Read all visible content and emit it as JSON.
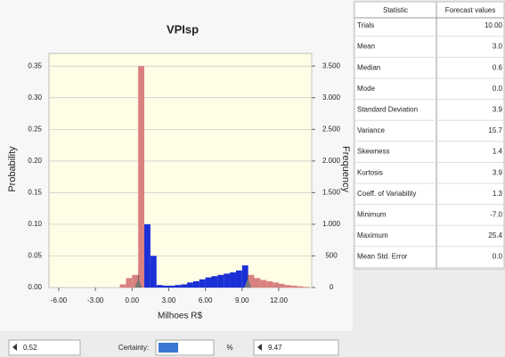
{
  "chart_data": {
    "type": "histogram",
    "title": "VPIsp",
    "xlabel": "Milhoes R$",
    "ylabel": "Probability",
    "y2label": "Frequency",
    "bins": [
      -1.0,
      -0.5,
      0.0,
      0.5,
      1.0,
      1.5,
      2.0,
      2.5,
      3.0,
      3.5,
      4.0,
      4.5,
      5.0,
      5.5,
      6.0,
      6.5,
      7.0,
      7.5,
      8.0,
      8.5,
      9.0,
      9.5,
      10.0,
      10.5,
      11.0,
      11.5,
      12.0,
      12.5,
      13.0,
      13.5,
      14.0,
      14.5
    ],
    "values": [
      0.005,
      0.015,
      0.02,
      0.35,
      0.1,
      0.05,
      0.004,
      0.003,
      0.003,
      0.004,
      0.005,
      0.008,
      0.01,
      0.013,
      0.016,
      0.018,
      0.02,
      0.022,
      0.024,
      0.027,
      0.035,
      0.02,
      0.015,
      0.012,
      0.01,
      0.008,
      0.006,
      0.004,
      0.003,
      0.002,
      0.001
    ],
    "color": "#1a2fd6",
    "outside_color": "#d98080",
    "xlim": [
      -6.8,
      14.7
    ],
    "ylim": [
      0,
      0.37
    ],
    "y2lim": [
      0,
      3700
    ],
    "xticks": [
      {
        "value": -6,
        "label": "-6.00"
      },
      {
        "value": -3,
        "label": "-3.00"
      },
      {
        "value": 0,
        "label": "0.00"
      },
      {
        "value": 3,
        "label": "3.00"
      },
      {
        "value": 6,
        "label": "6.00"
      },
      {
        "value": 9,
        "label": "9.00"
      },
      {
        "value": 12,
        "label": "12.00"
      }
    ],
    "yticks": [
      {
        "value": 0,
        "label": "0.00"
      },
      {
        "value": 0.05,
        "label": "0.05"
      },
      {
        "value": 0.1,
        "label": "0.10"
      },
      {
        "value": 0.15,
        "label": "0.15"
      },
      {
        "value": 0.2,
        "label": "0.20"
      },
      {
        "value": 0.25,
        "label": "0.25"
      },
      {
        "value": 0.3,
        "label": "0.30"
      },
      {
        "value": 0.35,
        "label": "0.35"
      }
    ],
    "y2ticks": [
      0,
      500,
      {
        "value": 1000,
        "label": "1.000"
      },
      {
        "value": 1500,
        "label": "1.500"
      },
      {
        "value": 2000,
        "label": "2.000"
      },
      {
        "value": 2500,
        "label": "2.500"
      },
      {
        "value": 3000,
        "label": "3.000"
      },
      {
        "value": 3500,
        "label": "3.500"
      }
    ],
    "grid": true,
    "certainty_range": [
      0.52,
      9.47
    ]
  },
  "statistics_table": {
    "header": [
      "Statistic",
      "Forecast values"
    ],
    "rows": [
      [
        "Trials",
        "10.00"
      ],
      [
        "Mean",
        "3.0"
      ],
      [
        "Median",
        "0.6"
      ],
      [
        "Mode",
        "0.0"
      ],
      [
        "Standard Deviation",
        "3.9"
      ],
      [
        "Variance",
        "15.7"
      ],
      [
        "Skewness",
        "1.4"
      ],
      [
        "Kurtosis",
        "3.9"
      ],
      [
        "Coeff. of Variability",
        "1.3"
      ],
      [
        "Minimum",
        "-7.0"
      ],
      [
        "Maximum",
        "25.4"
      ],
      [
        "Mean Std. Error",
        "0.0"
      ]
    ]
  },
  "controls": {
    "certainty_label": "Certainty:",
    "percent": "%"
  }
}
